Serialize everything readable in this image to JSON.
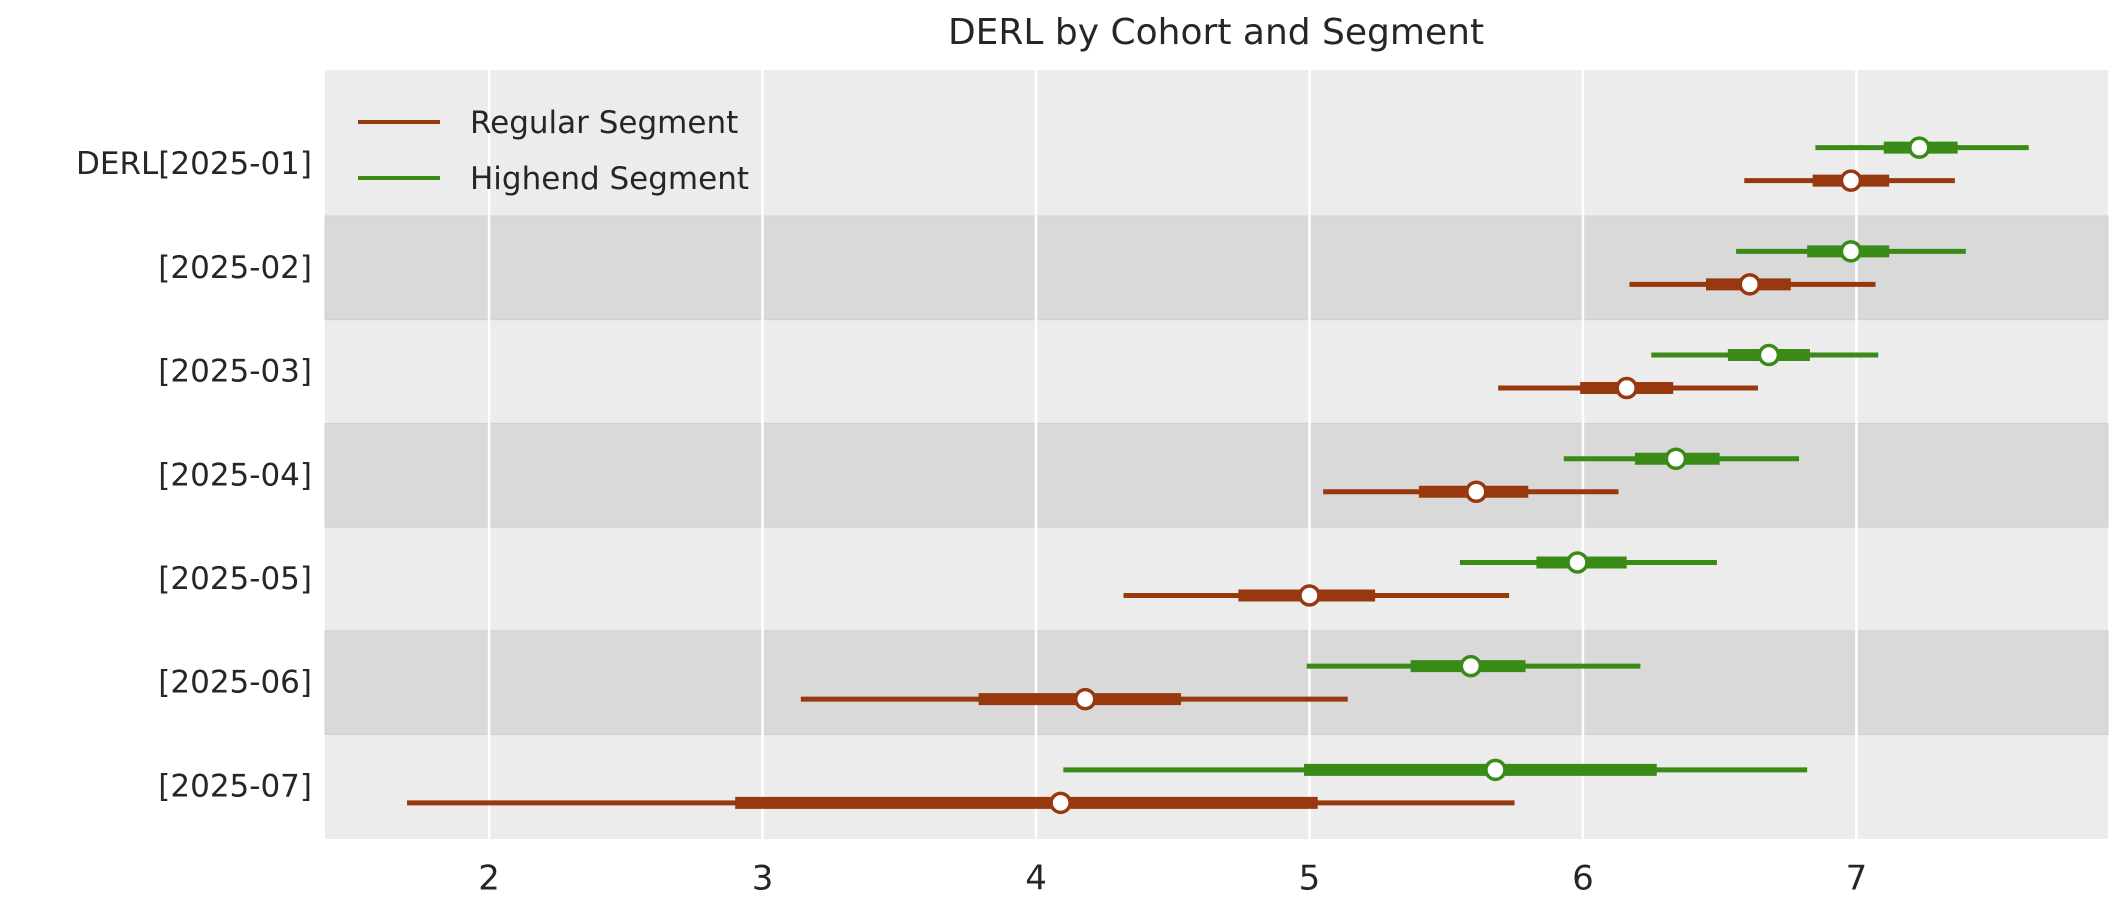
{
  "chart_data": {
    "type": "forest",
    "title": "DERL by Cohort and Segment",
    "categories": [
      "DERL[2025-01]",
      "[2025-02]",
      "[2025-03]",
      "[2025-04]",
      "[2025-05]",
      "[2025-06]",
      "[2025-07]"
    ],
    "x_ticks": [
      2,
      3,
      4,
      5,
      6,
      7
    ],
    "xlim": [
      1.4,
      7.92
    ],
    "interval_format": [
      "whisker_low",
      "band_low",
      "median",
      "band_high",
      "whisker_high"
    ],
    "series": [
      {
        "name": "Regular Segment",
        "color": "#97380e",
        "intervals": [
          [
            6.59,
            6.84,
            6.98,
            7.12,
            7.36
          ],
          [
            6.17,
            6.45,
            6.61,
            6.76,
            7.07
          ],
          [
            5.69,
            5.99,
            6.16,
            6.33,
            6.64
          ],
          [
            5.05,
            5.4,
            5.61,
            5.8,
            6.13
          ],
          [
            4.32,
            4.74,
            5.0,
            5.24,
            5.73
          ],
          [
            3.14,
            3.79,
            4.18,
            4.53,
            5.14
          ],
          [
            1.7,
            2.9,
            4.09,
            5.03,
            5.75
          ]
        ]
      },
      {
        "name": "Highend Segment",
        "color": "#3a8a17",
        "intervals": [
          [
            6.85,
            7.1,
            7.23,
            7.37,
            7.63
          ],
          [
            6.56,
            6.82,
            6.98,
            7.12,
            7.4
          ],
          [
            6.25,
            6.53,
            6.68,
            6.83,
            7.08
          ],
          [
            5.93,
            6.19,
            6.34,
            6.5,
            6.79
          ],
          [
            5.55,
            5.83,
            5.98,
            6.16,
            6.49
          ],
          [
            4.99,
            5.37,
            5.59,
            5.79,
            6.21
          ],
          [
            4.1,
            4.98,
            5.68,
            6.27,
            6.82
          ]
        ]
      }
    ],
    "legend_position": "upper left",
    "grid": "vertical white gridlines at x ticks",
    "style": {
      "band_color_light": "#ececec",
      "band_color_dark": "#d9d9d9",
      "gridline_color": "#ffffff",
      "text_color": "#262626",
      "marker_fill": "#ffffff",
      "figure_background": "#ffffff"
    }
  }
}
